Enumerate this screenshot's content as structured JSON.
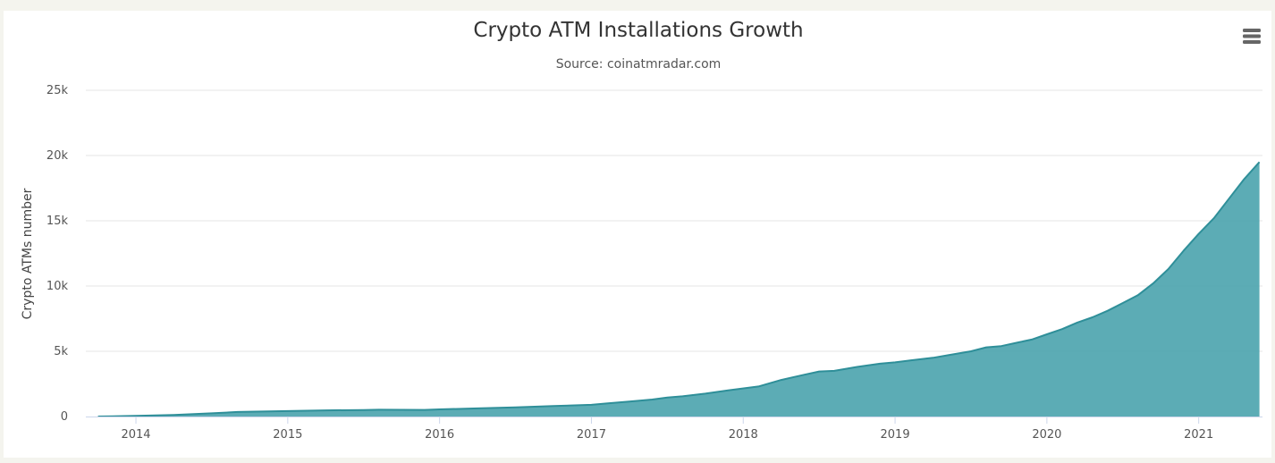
{
  "menu": {
    "icon": "hamburger-menu-icon"
  },
  "colors": {
    "area_fill": "#4aa3ad",
    "area_line": "#2f8f99",
    "grid": "#e6e6e6",
    "axis": "#ccd6eb"
  },
  "chart_data": {
    "type": "area",
    "title": "Crypto ATM Installations Growth",
    "subtitle": "Source: coinatmradar.com",
    "xlabel": "",
    "ylabel": "Crypto ATMs number",
    "ylim": [
      0,
      25000
    ],
    "y_ticks": [
      {
        "value": 0,
        "label": "0"
      },
      {
        "value": 5000,
        "label": "5k"
      },
      {
        "value": 10000,
        "label": "10k"
      },
      {
        "value": 15000,
        "label": "15k"
      },
      {
        "value": 20000,
        "label": "20k"
      },
      {
        "value": 25000,
        "label": "25k"
      }
    ],
    "x_ticks": [
      {
        "value": 2014.0,
        "label": "2014"
      },
      {
        "value": 2015.0,
        "label": "2015"
      },
      {
        "value": 2016.0,
        "label": "2016"
      },
      {
        "value": 2017.0,
        "label": "2017"
      },
      {
        "value": 2018.0,
        "label": "2018"
      },
      {
        "value": 2019.0,
        "label": "2019"
      },
      {
        "value": 2020.0,
        "label": "2020"
      },
      {
        "value": 2021.0,
        "label": "2021"
      }
    ],
    "xlim": [
      2013.67,
      2021.42
    ],
    "grid": true,
    "legend": "none",
    "series": [
      {
        "x": [
          2013.75,
          2014.0,
          2014.25,
          2014.5,
          2014.67,
          2015.0,
          2015.25,
          2015.5,
          2015.6,
          2015.9,
          2016.0,
          2016.25,
          2016.5,
          2016.75,
          2017.0,
          2017.1,
          2017.25,
          2017.4,
          2017.5,
          2017.6,
          2017.75,
          2017.9,
          2018.1,
          2018.25,
          2018.4,
          2018.5,
          2018.6,
          2018.75,
          2018.9,
          2019.0,
          2019.1,
          2019.25,
          2019.35,
          2019.5,
          2019.6,
          2019.7,
          2019.8,
          2019.9,
          2020.0,
          2020.1,
          2020.2,
          2020.3,
          2020.4,
          2020.5,
          2020.6,
          2020.7,
          2020.8,
          2020.9,
          2021.0,
          2021.1,
          2021.2,
          2021.3,
          2021.4
        ],
        "values": [
          0,
          50,
          120,
          250,
          350,
          420,
          470,
          500,
          520,
          510,
          550,
          620,
          700,
          800,
          900,
          1000,
          1150,
          1300,
          1450,
          1550,
          1750,
          2000,
          2300,
          2800,
          3200,
          3450,
          3500,
          3800,
          4050,
          4150,
          4300,
          4500,
          4700,
          5000,
          5300,
          5400,
          5650,
          5900,
          6300,
          6700,
          7200,
          7600,
          8100,
          8700,
          9300,
          10200,
          11300,
          12700,
          14000,
          15200,
          16700,
          18200,
          19500
        ]
      }
    ]
  }
}
